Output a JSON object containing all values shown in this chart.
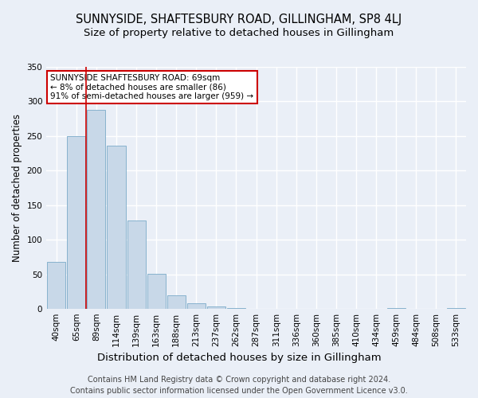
{
  "title": "SUNNYSIDE, SHAFTESBURY ROAD, GILLINGHAM, SP8 4LJ",
  "subtitle": "Size of property relative to detached houses in Gillingham",
  "xlabel": "Distribution of detached houses by size in Gillingham",
  "ylabel": "Number of detached properties",
  "bar_labels": [
    "40sqm",
    "65sqm",
    "89sqm",
    "114sqm",
    "139sqm",
    "163sqm",
    "188sqm",
    "213sqm",
    "237sqm",
    "262sqm",
    "287sqm",
    "311sqm",
    "336sqm",
    "360sqm",
    "385sqm",
    "410sqm",
    "434sqm",
    "459sqm",
    "484sqm",
    "508sqm",
    "533sqm"
  ],
  "bar_values": [
    68,
    250,
    288,
    236,
    128,
    51,
    20,
    8,
    4,
    1,
    0,
    0,
    0,
    0,
    0,
    0,
    0,
    1,
    0,
    0,
    1
  ],
  "bar_color": "#c8d8e8",
  "bar_edge_color": "#7aaac8",
  "vline_x": 1.5,
  "vline_color": "#cc0000",
  "annotation_text": "SUNNYSIDE SHAFTESBURY ROAD: 69sqm\n← 8% of detached houses are smaller (86)\n91% of semi-detached houses are larger (959) →",
  "annotation_box_color": "#ffffff",
  "annotation_box_edge": "#cc0000",
  "ylim": [
    0,
    350
  ],
  "yticks": [
    0,
    50,
    100,
    150,
    200,
    250,
    300,
    350
  ],
  "background_color": "#eaeff7",
  "axes_background": "#eaeff7",
  "grid_color": "#ffffff",
  "footer1": "Contains HM Land Registry data © Crown copyright and database right 2024.",
  "footer2": "Contains public sector information licensed under the Open Government Licence v3.0.",
  "title_fontsize": 10.5,
  "subtitle_fontsize": 9.5,
  "xlabel_fontsize": 9.5,
  "ylabel_fontsize": 8.5,
  "tick_fontsize": 7.5,
  "footer_fontsize": 7.0,
  "annot_fontsize": 7.5
}
